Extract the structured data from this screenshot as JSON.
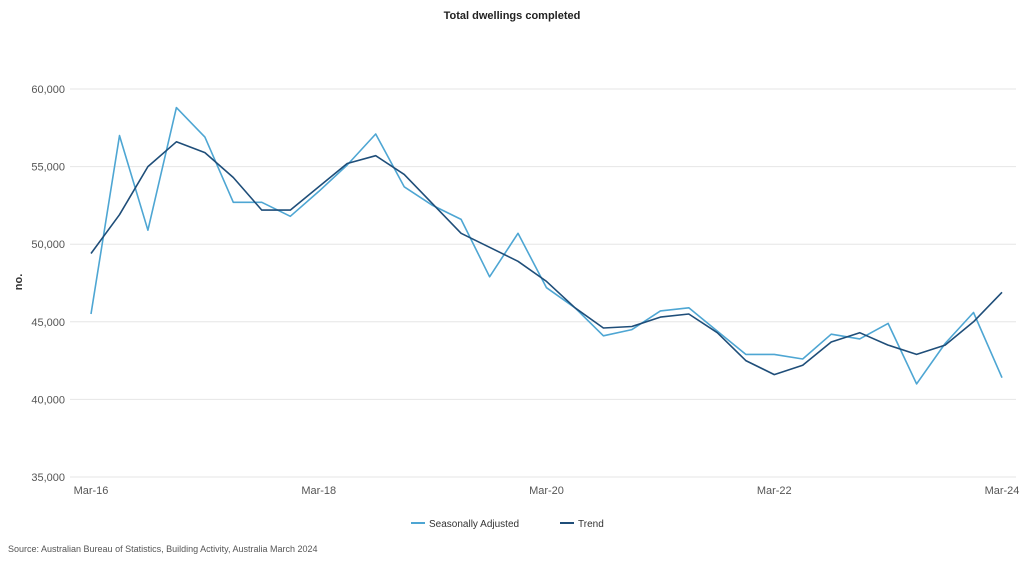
{
  "chart_data": {
    "type": "line",
    "title": "Total dwellings completed",
    "ylabel": "no.",
    "xlabel": "",
    "ylim": [
      35000,
      60000
    ],
    "yticks": [
      35000,
      40000,
      45000,
      50000,
      55000,
      60000
    ],
    "ytick_labels": [
      "35,000",
      "40,000",
      "45,000",
      "50,000",
      "55,000",
      "60,000"
    ],
    "xtick_labels": [
      "Mar-16",
      "Mar-18",
      "Mar-20",
      "Mar-22",
      "Mar-24"
    ],
    "x": [
      "Mar-16",
      "Jun-16",
      "Sep-16",
      "Dec-16",
      "Mar-17",
      "Jun-17",
      "Sep-17",
      "Dec-17",
      "Mar-18",
      "Jun-18",
      "Sep-18",
      "Dec-18",
      "Mar-19",
      "Jun-19",
      "Sep-19",
      "Dec-19",
      "Mar-20",
      "Jun-20",
      "Sep-20",
      "Dec-20",
      "Mar-21",
      "Jun-21",
      "Sep-21",
      "Dec-21",
      "Mar-22",
      "Jun-22",
      "Sep-22",
      "Dec-22",
      "Mar-23",
      "Jun-23",
      "Sep-23",
      "Dec-23",
      "Mar-24"
    ],
    "series": [
      {
        "name": "Seasonally Adjusted",
        "color": "#4ea6d3",
        "values": [
          45500,
          57000,
          50900,
          58800,
          56900,
          52700,
          52700,
          51800,
          53400,
          55100,
          57100,
          53700,
          52500,
          51600,
          47900,
          50700,
          47200,
          45900,
          44100,
          44500,
          45700,
          45900,
          44400,
          42900,
          42900,
          42600,
          44200,
          43900,
          44900,
          41000,
          43600,
          45600,
          41400
        ]
      },
      {
        "name": "Trend",
        "color": "#1f4e79",
        "values": [
          49400,
          51900,
          55000,
          56600,
          55900,
          54300,
          52200,
          52200,
          53700,
          55200,
          55700,
          54500,
          52600,
          50700,
          49800,
          48900,
          47600,
          45900,
          44600,
          44700,
          45300,
          45500,
          44300,
          42500,
          41600,
          42200,
          43700,
          44300,
          43500,
          42900,
          43500,
          45000,
          46900
        ]
      }
    ],
    "grid": true,
    "legend": "bottom-center"
  },
  "source": "Source: Australian Bureau of Statistics, Building Activity, Australia March 2024"
}
